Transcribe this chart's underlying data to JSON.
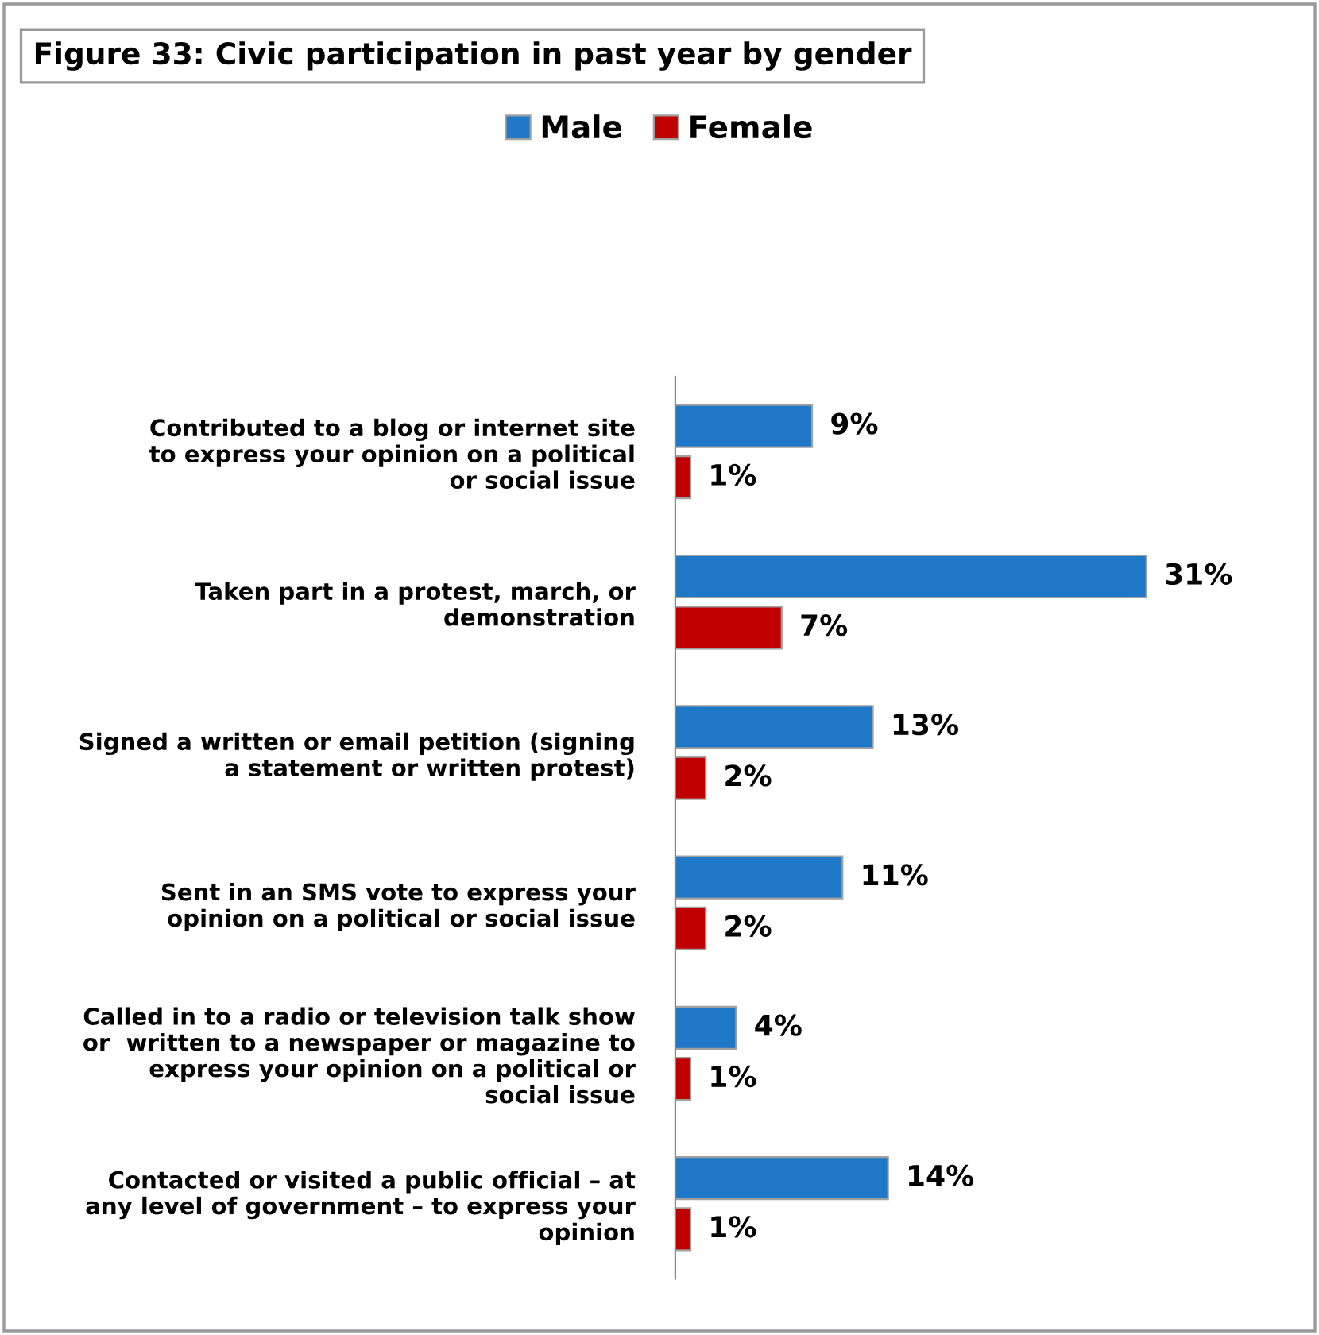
{
  "chart_data": {
    "type": "bar",
    "orientation": "horizontal",
    "title": "Figure 33: Civic participation in past year by gender",
    "categories": [
      "Contributed to a blog or internet site\nto express your opinion on a political\nor social issue",
      "Taken part in a protest, march, or\ndemonstration",
      "Signed a written or email petition (signing\na statement or written protest)",
      "Sent in an SMS vote to express your\nopinion on a political or social issue",
      "Called in to a radio or television talk show\nor  written to a newspaper or magazine to\nexpress your opinion on a political or\nsocial issue",
      "Contacted or visited a public official – at\nany level of government – to express your\nopinion"
    ],
    "series": [
      {
        "name": "Male",
        "color": "#1f77c8",
        "values": [
          9,
          31,
          13,
          11,
          4,
          14
        ],
        "value_labels": [
          "9%",
          "31%",
          "13%",
          "11%",
          "4%",
          "14%"
        ]
      },
      {
        "name": "Female",
        "color": "#c00000",
        "values": [
          1,
          7,
          2,
          2,
          1,
          1
        ],
        "value_labels": [
          "1%",
          "7%",
          "2%",
          "2%",
          "1%",
          "1%"
        ]
      }
    ],
    "legend": "top",
    "grid": false,
    "tick_labels": "y"
  }
}
